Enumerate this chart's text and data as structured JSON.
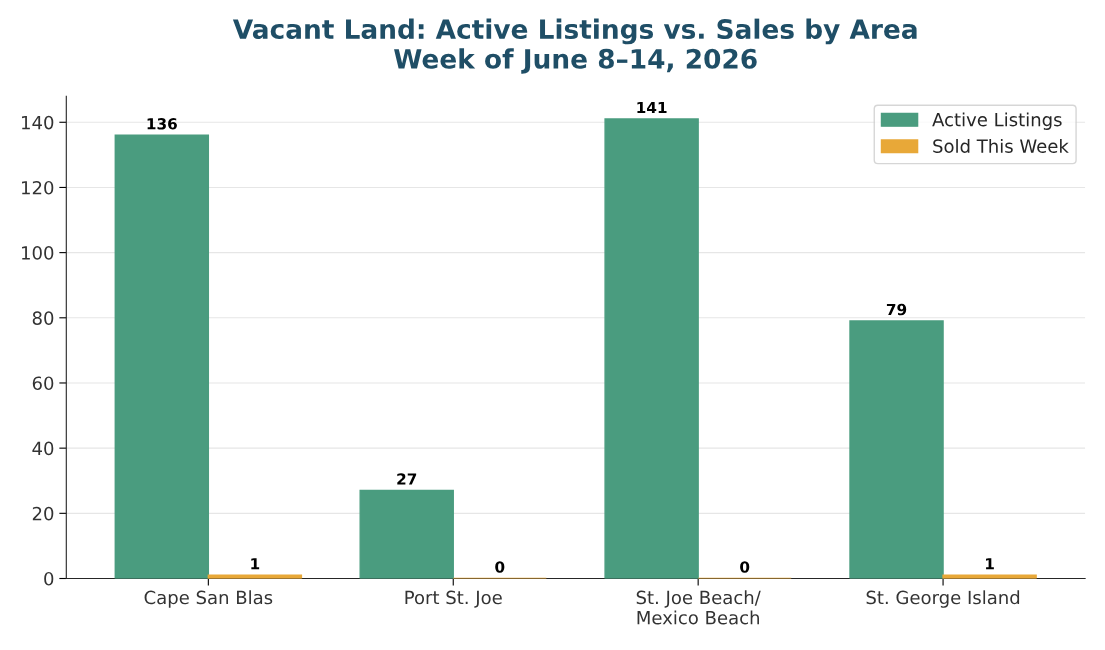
{
  "chart_data": {
    "type": "bar",
    "title": "Vacant Land: Active Listings vs. Sales by Area\nWeek of June 8–14, 2026",
    "categories": [
      "Cape San Blas",
      "Port St. Joe",
      "St. Joe Beach/\nMexico Beach",
      "St. George Island"
    ],
    "series": [
      {
        "name": "Active Listings",
        "color": "#4a9c7f",
        "values": [
          136,
          27,
          141,
          79
        ]
      },
      {
        "name": "Sold This Week",
        "color": "#e8a838",
        "values": [
          1,
          0,
          0,
          1
        ]
      }
    ],
    "ylim": [
      0,
      148
    ],
    "yticks": [
      0,
      20,
      40,
      60,
      80,
      100,
      120,
      140
    ],
    "grid": "y",
    "legend": "top right",
    "data_labels": true
  }
}
